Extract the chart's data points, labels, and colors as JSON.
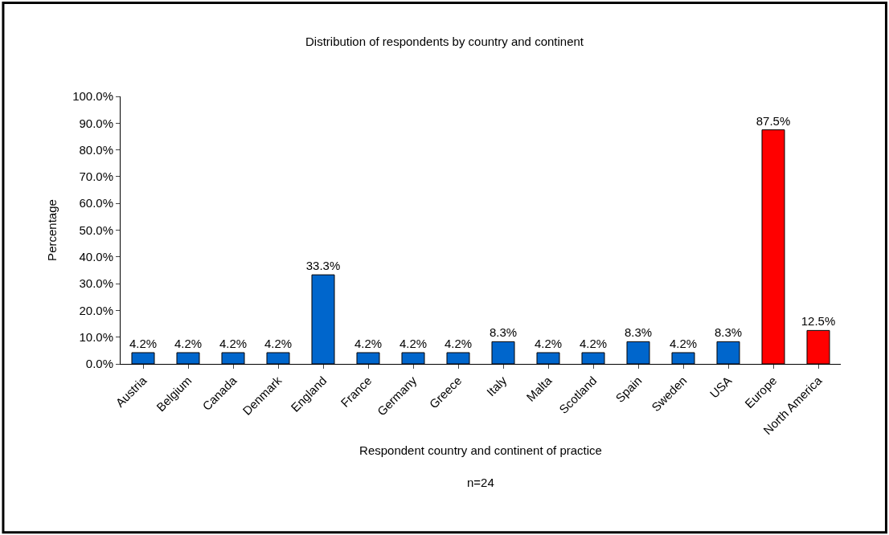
{
  "chart_data": {
    "type": "bar",
    "title": "Distribution of respondents by country and continent",
    "xlabel": "Respondent country and continent of practice",
    "ylabel": "Percentage",
    "annotations": [
      "n=24"
    ],
    "categories": [
      "Austria",
      "Belgium",
      "Canada",
      "Denmark",
      "England",
      "France",
      "Germany",
      "Greece",
      "Italy",
      "Malta",
      "Scotland",
      "Spain",
      "Sweden",
      "USA",
      "Europe",
      "North America"
    ],
    "values": [
      4.2,
      4.2,
      4.2,
      4.2,
      33.3,
      4.2,
      4.2,
      4.2,
      8.3,
      4.2,
      4.2,
      8.3,
      4.2,
      8.3,
      87.5,
      12.5
    ],
    "value_labels": [
      "4.2%",
      "4.2%",
      "4.2%",
      "4.2%",
      "33.3%",
      "4.2%",
      "4.2%",
      "4.2%",
      "8.3%",
      "4.2%",
      "4.2%",
      "8.3%",
      "4.2%",
      "8.3%",
      "87.5%",
      "12.5%"
    ],
    "colors": [
      "#0066cc",
      "#0066cc",
      "#0066cc",
      "#0066cc",
      "#0066cc",
      "#0066cc",
      "#0066cc",
      "#0066cc",
      "#0066cc",
      "#0066cc",
      "#0066cc",
      "#0066cc",
      "#0066cc",
      "#0066cc",
      "#ff0000",
      "#ff0000"
    ],
    "ylim": [
      0,
      100
    ],
    "yticks": [
      {
        "value": 0,
        "label": "0.0%"
      },
      {
        "value": 10,
        "label": "10.0%"
      },
      {
        "value": 20,
        "label": "20.0%"
      },
      {
        "value": 30,
        "label": "30.0%"
      },
      {
        "value": 40,
        "label": "40.0%"
      },
      {
        "value": 50,
        "label": "50.0%"
      },
      {
        "value": 60,
        "label": "60.0%"
      },
      {
        "value": 70,
        "label": "70.0%"
      },
      {
        "value": 80,
        "label": "80.0%"
      },
      {
        "value": 90,
        "label": "90.0%"
      },
      {
        "value": 100,
        "label": "100.0%"
      }
    ],
    "grid": false
  }
}
